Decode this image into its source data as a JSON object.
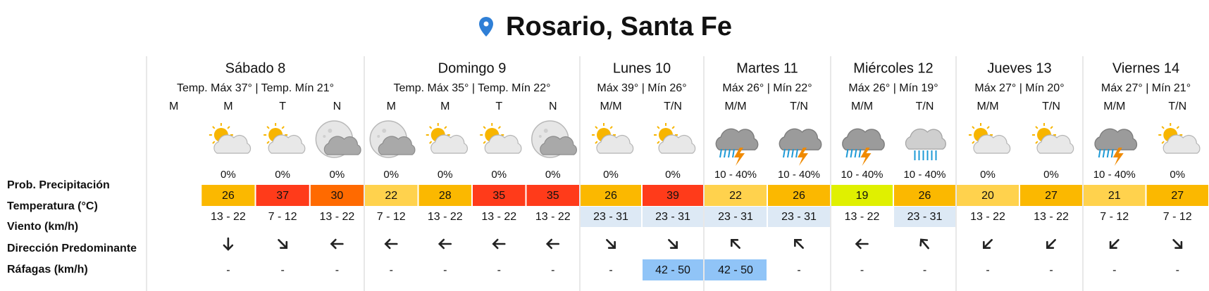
{
  "header": {
    "title": "Rosario, Santa Fe"
  },
  "row_labels": [
    "Prob. Precipitación",
    "Temperatura (°C)",
    "Viento (km/h)",
    "Dirección Predominante",
    "Ráfagas (km/h)"
  ],
  "days": [
    {
      "name": "Sábado 8",
      "temps": "Temp. Máx 37° | Temp. Mín 21°",
      "periods": [
        {
          "label": "M",
          "icon": null,
          "precip": null,
          "temp": null,
          "temp_color": null,
          "wind": null,
          "wind_bg": null,
          "dir": null,
          "gust": null,
          "gust_bg": null
        },
        {
          "label": "M",
          "icon": "sun-cloud",
          "precip": "0%",
          "temp": 26,
          "temp_color": "#fbb800",
          "wind": "13 - 22",
          "wind_bg": null,
          "dir": 180,
          "gust": "-",
          "gust_bg": null
        },
        {
          "label": "T",
          "icon": "sun-cloud",
          "precip": "0%",
          "temp": 37,
          "temp_color": "#ff3b1a",
          "wind": "7 - 12",
          "wind_bg": null,
          "dir": 135,
          "gust": "-",
          "gust_bg": null
        },
        {
          "label": "N",
          "icon": "moon-cloud",
          "precip": "0%",
          "temp": 30,
          "temp_color": "#ff6a00",
          "wind": "13 - 22",
          "wind_bg": null,
          "dir": 270,
          "gust": "-",
          "gust_bg": null
        }
      ]
    },
    {
      "name": "Domingo 9",
      "temps": "Temp. Máx 35° | Temp. Mín 22°",
      "periods": [
        {
          "label": "M",
          "icon": "moon-cloud",
          "precip": "0%",
          "temp": 22,
          "temp_color": "#ffd24d",
          "wind": "7 - 12",
          "wind_bg": null,
          "dir": 270,
          "gust": "-",
          "gust_bg": null
        },
        {
          "label": "M",
          "icon": "sun-cloud",
          "precip": "0%",
          "temp": 28,
          "temp_color": "#fbb800",
          "wind": "13 - 22",
          "wind_bg": null,
          "dir": 270,
          "gust": "-",
          "gust_bg": null
        },
        {
          "label": "T",
          "icon": "sun-cloud",
          "precip": "0%",
          "temp": 35,
          "temp_color": "#ff3b1a",
          "wind": "13 - 22",
          "wind_bg": null,
          "dir": 270,
          "gust": "-",
          "gust_bg": null
        },
        {
          "label": "N",
          "icon": "moon-cloud",
          "precip": "0%",
          "temp": 35,
          "temp_color": "#ff3b1a",
          "wind": "13 - 22",
          "wind_bg": null,
          "dir": 270,
          "gust": "-",
          "gust_bg": null
        }
      ]
    },
    {
      "name": "Lunes 10",
      "temps": "Máx 39° | Mín 26°",
      "periods": [
        {
          "label": "M/M",
          "icon": "sun-cloud",
          "precip": "0%",
          "temp": 26,
          "temp_color": "#fbb800",
          "wind": "23 - 31",
          "wind_bg": "#dde9f5",
          "dir": 135,
          "gust": "-",
          "gust_bg": null
        },
        {
          "label": "T/N",
          "icon": "sun-cloud",
          "precip": "0%",
          "temp": 39,
          "temp_color": "#ff3b1a",
          "wind": "23 - 31",
          "wind_bg": "#dde9f5",
          "dir": 135,
          "gust": "42 - 50",
          "gust_bg": "#90c4f7"
        }
      ]
    },
    {
      "name": "Martes 11",
      "temps": "Máx 26° | Mín 22°",
      "periods": [
        {
          "label": "M/M",
          "icon": "storm",
          "precip": "10 - 40%",
          "temp": 22,
          "temp_color": "#ffd24d",
          "wind": "23 - 31",
          "wind_bg": "#dde9f5",
          "dir": 315,
          "gust": "42 - 50",
          "gust_bg": "#90c4f7"
        },
        {
          "label": "T/N",
          "icon": "storm",
          "precip": "10 - 40%",
          "temp": 26,
          "temp_color": "#fbb800",
          "wind": "23 - 31",
          "wind_bg": "#dde9f5",
          "dir": 315,
          "gust": "-",
          "gust_bg": null
        }
      ]
    },
    {
      "name": "Miércoles 12",
      "temps": "Máx 26° | Mín 19°",
      "periods": [
        {
          "label": "M/M",
          "icon": "storm",
          "precip": "10 - 40%",
          "temp": 19,
          "temp_color": "#e0f000",
          "wind": "13 - 22",
          "wind_bg": null,
          "dir": 270,
          "gust": "-",
          "gust_bg": null
        },
        {
          "label": "T/N",
          "icon": "rain",
          "precip": "10 - 40%",
          "temp": 26,
          "temp_color": "#fbb800",
          "wind": "23 - 31",
          "wind_bg": "#dde9f5",
          "dir": 320,
          "gust": "-",
          "gust_bg": null
        }
      ]
    },
    {
      "name": "Jueves 13",
      "temps": "Máx 27° | Mín 20°",
      "periods": [
        {
          "label": "M/M",
          "icon": "sun-cloud",
          "precip": "0%",
          "temp": 20,
          "temp_color": "#ffd24d",
          "wind": "13 - 22",
          "wind_bg": null,
          "dir": 225,
          "gust": "-",
          "gust_bg": null
        },
        {
          "label": "T/N",
          "icon": "sun-cloud",
          "precip": "0%",
          "temp": 27,
          "temp_color": "#fbb800",
          "wind": "13 - 22",
          "wind_bg": null,
          "dir": 225,
          "gust": "-",
          "gust_bg": null
        }
      ]
    },
    {
      "name": "Viernes 14",
      "temps": "Máx 27° | Mín 21°",
      "periods": [
        {
          "label": "M/M",
          "icon": "storm",
          "precip": "10 - 40%",
          "temp": 21,
          "temp_color": "#ffd24d",
          "wind": "7 - 12",
          "wind_bg": null,
          "dir": 225,
          "gust": "-",
          "gust_bg": null
        },
        {
          "label": "T/N",
          "icon": "sun-cloud",
          "precip": "0%",
          "temp": 27,
          "temp_color": "#fbb800",
          "wind": "7 - 12",
          "wind_bg": null,
          "dir": 135,
          "gust": "-",
          "gust_bg": null
        }
      ]
    }
  ]
}
